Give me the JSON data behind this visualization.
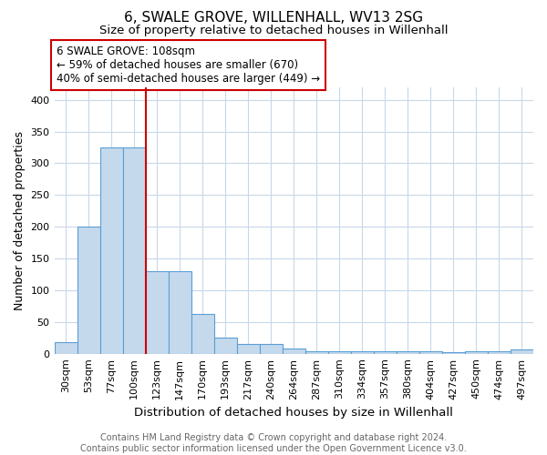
{
  "title": "6, SWALE GROVE, WILLENHALL, WV13 2SG",
  "subtitle": "Size of property relative to detached houses in Willenhall",
  "xlabel": "Distribution of detached houses by size in Willenhall",
  "ylabel": "Number of detached properties",
  "categories": [
    "30sqm",
    "53sqm",
    "77sqm",
    "100sqm",
    "123sqm",
    "147sqm",
    "170sqm",
    "193sqm",
    "217sqm",
    "240sqm",
    "264sqm",
    "287sqm",
    "310sqm",
    "334sqm",
    "357sqm",
    "380sqm",
    "404sqm",
    "427sqm",
    "450sqm",
    "474sqm",
    "497sqm"
  ],
  "values": [
    18,
    200,
    325,
    325,
    130,
    130,
    62,
    25,
    15,
    15,
    8,
    4,
    4,
    4,
    4,
    4,
    4,
    3,
    4,
    4,
    6
  ],
  "bar_color": "#c5d9ed",
  "bar_edge_color": "#5a9fd4",
  "grid_color": "#c8d8e8",
  "background_color": "#ffffff",
  "annotation_line1": "6 SWALE GROVE: 108sqm",
  "annotation_line2": "← 59% of detached houses are smaller (670)",
  "annotation_line3": "40% of semi-detached houses are larger (449) →",
  "annotation_box_color": "#ffffff",
  "annotation_border_color": "#cc0000",
  "red_line_x": 3.5,
  "footer_text": "Contains HM Land Registry data © Crown copyright and database right 2024.\nContains public sector information licensed under the Open Government Licence v3.0.",
  "ylim": [
    0,
    420
  ],
  "yticks": [
    0,
    50,
    100,
    150,
    200,
    250,
    300,
    350,
    400
  ],
  "title_fontsize": 11,
  "subtitle_fontsize": 9.5,
  "xlabel_fontsize": 9.5,
  "ylabel_fontsize": 9,
  "tick_fontsize": 8,
  "annotation_fontsize": 8.5,
  "footer_fontsize": 7
}
